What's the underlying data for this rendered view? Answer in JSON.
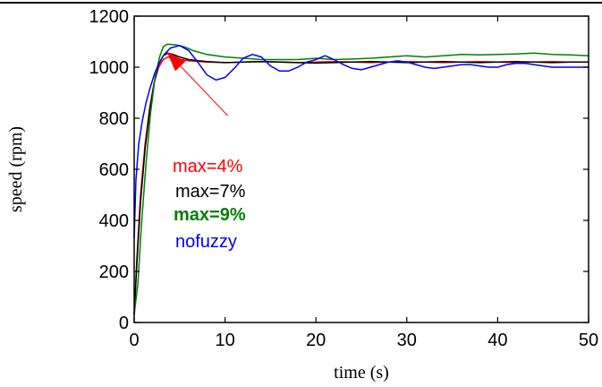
{
  "chart_data": {
    "type": "line",
    "title": "",
    "xlabel": "time (s)",
    "ylabel": "speed (rpm)",
    "xlim": [
      0,
      50
    ],
    "ylim": [
      0,
      1200
    ],
    "xticks": [
      0,
      10,
      20,
      30,
      40,
      50
    ],
    "yticks": [
      0,
      200,
      400,
      600,
      800,
      1000,
      1200
    ],
    "grid": false,
    "series": [
      {
        "name": "max=4%",
        "color": "#ff0000",
        "x": [
          0,
          0.3,
          0.7,
          1.2,
          1.7,
          2.2,
          2.7,
          3.2,
          3.7,
          4.5,
          6,
          8,
          10,
          12,
          14,
          16,
          18,
          20,
          22,
          24,
          26,
          28,
          30,
          32,
          34,
          36,
          38,
          40,
          42,
          44,
          46,
          48,
          50
        ],
        "y": [
          30,
          250,
          500,
          700,
          840,
          940,
          1000,
          1030,
          1040,
          1035,
          1025,
          1020,
          1018,
          1020,
          1022,
          1020,
          1018,
          1020,
          1022,
          1020,
          1018,
          1020,
          1022,
          1020,
          1018,
          1020,
          1022,
          1020,
          1018,
          1020,
          1022,
          1020,
          1020
        ]
      },
      {
        "name": "max=7%",
        "color": "#000000",
        "x": [
          0,
          0.3,
          0.7,
          1.2,
          1.7,
          2.2,
          2.7,
          3.2,
          3.7,
          4.3,
          5,
          6,
          8,
          10,
          12,
          14,
          16,
          18,
          20,
          22,
          24,
          26,
          28,
          30,
          32,
          34,
          36,
          38,
          40,
          42,
          44,
          46,
          48,
          50
        ],
        "y": [
          30,
          230,
          470,
          680,
          830,
          940,
          1010,
          1045,
          1055,
          1050,
          1040,
          1030,
          1022,
          1018,
          1020,
          1022,
          1020,
          1018,
          1016,
          1018,
          1020,
          1022,
          1020,
          1018,
          1020,
          1022,
          1020,
          1018,
          1020,
          1022,
          1020,
          1018,
          1020,
          1020
        ]
      },
      {
        "name": "max=9%",
        "color": "#008000",
        "x": [
          0,
          0.4,
          0.8,
          1.3,
          1.8,
          2.3,
          2.8,
          3.2,
          3.6,
          4.5,
          5.5,
          6.5,
          8,
          10,
          12,
          14,
          16,
          18,
          20,
          22,
          24,
          26,
          28,
          30,
          32,
          34,
          36,
          38,
          40,
          42,
          44,
          46,
          48,
          50
        ],
        "y": [
          30,
          150,
          380,
          620,
          820,
          960,
          1040,
          1080,
          1090,
          1088,
          1080,
          1065,
          1050,
          1040,
          1035,
          1030,
          1030,
          1030,
          1035,
          1030,
          1032,
          1035,
          1040,
          1045,
          1040,
          1045,
          1050,
          1048,
          1050,
          1052,
          1055,
          1050,
          1048,
          1045
        ]
      },
      {
        "name": "nofuzzy",
        "color": "#0000ff",
        "x": [
          0,
          0.2,
          0.5,
          0.9,
          1.3,
          1.8,
          2.3,
          2.8,
          3.3,
          4,
          5,
          6,
          7,
          8,
          9,
          10,
          11,
          12,
          13,
          14,
          15,
          16,
          17,
          18,
          19,
          20,
          21,
          22,
          23,
          24,
          25,
          26,
          27,
          28,
          29,
          30,
          31,
          32,
          33,
          34,
          35,
          36,
          37,
          38,
          39,
          40,
          41,
          42,
          43,
          44,
          45,
          46,
          47,
          48,
          49,
          50
        ],
        "y": [
          330,
          560,
          700,
          790,
          860,
          925,
          980,
          1020,
          1050,
          1075,
          1085,
          1065,
          1020,
          970,
          950,
          960,
          995,
          1035,
          1050,
          1040,
          1005,
          985,
          985,
          1000,
          1020,
          1030,
          1045,
          1030,
          1010,
          995,
          990,
          1000,
          1010,
          1020,
          1025,
          1020,
          1010,
          1000,
          995,
          1000,
          1005,
          1010,
          1010,
          1005,
          1000,
          1000,
          1010,
          1015,
          1015,
          1010,
          1005,
          1000,
          1000,
          1000,
          1000,
          1000
        ]
      }
    ],
    "annotations": [
      {
        "text": "max=4%",
        "color": "#ff0000",
        "bold": false
      },
      {
        "text": "max=7%",
        "color": "#000000",
        "bold": false
      },
      {
        "text": "max=9%",
        "color": "#008000",
        "bold": true
      },
      {
        "text": "nofuzzy",
        "color": "#0000ff",
        "bold": false
      }
    ],
    "arrow": {
      "color": "#ff0000",
      "from": [
        10.3,
        810
      ],
      "to": [
        3.6,
        1060
      ]
    }
  }
}
